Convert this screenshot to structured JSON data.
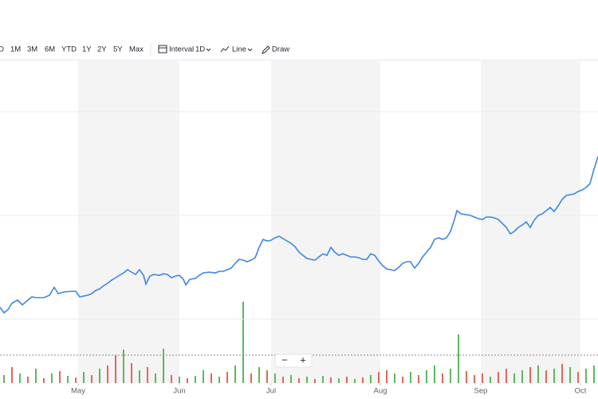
{
  "toolbar": {
    "ranges": [
      "D",
      "1M",
      "3M",
      "6M",
      "YTD",
      "1Y",
      "2Y",
      "5Y",
      "Max"
    ],
    "interval": "Interval",
    "interval_value": "1D",
    "chart_type": "Line",
    "draw": "Draw"
  },
  "zoom": [
    "−",
    "+"
  ],
  "chart_data": [
    {
      "type": "line",
      "color": "#3d86e6",
      "xlim": [
        0,
        750
      ],
      "ylim": [
        0,
        400
      ],
      "yticks": [
        80,
        210,
        340
      ],
      "grid": true,
      "xticks": [
        {
          "value": 98,
          "label": "May"
        },
        {
          "value": 225,
          "label": "Jun"
        },
        {
          "value": 340,
          "label": "Jul"
        },
        {
          "value": 477,
          "label": "Aug"
        },
        {
          "value": 603,
          "label": "Sep"
        },
        {
          "value": 728,
          "label": "Oct"
        }
      ],
      "x": [
        0,
        5,
        10,
        15,
        22,
        28,
        35,
        40,
        45,
        55,
        62,
        68,
        73,
        80,
        90,
        95,
        100,
        105,
        110,
        115,
        120,
        125,
        130,
        135,
        140,
        145,
        150,
        155,
        160,
        165,
        170,
        175,
        180,
        183,
        188,
        193,
        200,
        205,
        210,
        215,
        220,
        225,
        230,
        233,
        238,
        245,
        250,
        255,
        262,
        270,
        275,
        280,
        285,
        290,
        295,
        300,
        305,
        310,
        315,
        320,
        325,
        330,
        335,
        340,
        345,
        350,
        355,
        360,
        365,
        370,
        375,
        380,
        385,
        390,
        395,
        400,
        405,
        410,
        415,
        420,
        425,
        430,
        435,
        440,
        445,
        450,
        455,
        460,
        465,
        470,
        475,
        480,
        485,
        490,
        495,
        500,
        505,
        510,
        515,
        520,
        525,
        530,
        535,
        540,
        545,
        550,
        555,
        560,
        565,
        570,
        573,
        578,
        585,
        590,
        595,
        600,
        605,
        610,
        615,
        620,
        625,
        630,
        635,
        640,
        645,
        650,
        655,
        660,
        665,
        670,
        675,
        680,
        685,
        690,
        695,
        700,
        705,
        710,
        715,
        720,
        725,
        730,
        735,
        740,
        745,
        750
      ],
      "values": [
        95,
        88,
        92,
        100,
        104,
        98,
        104,
        108,
        107,
        107,
        110,
        120,
        112,
        114,
        115,
        115,
        108,
        109,
        110,
        112,
        116,
        118,
        122,
        125,
        129,
        132,
        135,
        138,
        142,
        139,
        136,
        142,
        135,
        124,
        134,
        136,
        135,
        137,
        136,
        132,
        134,
        135,
        130,
        123,
        130,
        131,
        135,
        138,
        139,
        138,
        140,
        140,
        142,
        144,
        150,
        155,
        154,
        152,
        154,
        157,
        170,
        180,
        178,
        179,
        182,
        184,
        181,
        178,
        175,
        171,
        164,
        160,
        156,
        155,
        154,
        158,
        162,
        160,
        170,
        164,
        160,
        162,
        160,
        158,
        158,
        157,
        155,
        155,
        162,
        160,
        153,
        147,
        143,
        142,
        141,
        145,
        150,
        152,
        152,
        144,
        150,
        158,
        164,
        170,
        180,
        182,
        180,
        182,
        190,
        205,
        216,
        212,
        211,
        210,
        208,
        206,
        205,
        208,
        208,
        207,
        205,
        200,
        195,
        187,
        190,
        195,
        198,
        202,
        195,
        204,
        210,
        212,
        216,
        220,
        215,
        222,
        230,
        235,
        236,
        237,
        240,
        242,
        245,
        250,
        268,
        284
      ]
    },
    {
      "type": "bar",
      "xlim": [
        0,
        750
      ],
      "ylim": [
        0,
        400
      ],
      "x": [
        5,
        15,
        25,
        35,
        45,
        55,
        65,
        75,
        85,
        95,
        105,
        115,
        125,
        135,
        145,
        155,
        165,
        175,
        185,
        195,
        205,
        215,
        225,
        235,
        245,
        255,
        265,
        275,
        285,
        295,
        305,
        315,
        325,
        335,
        345,
        355,
        365,
        375,
        385,
        395,
        405,
        415,
        425,
        435,
        445,
        455,
        465,
        475,
        485,
        495,
        505,
        515,
        525,
        535,
        545,
        555,
        565,
        575,
        585,
        595,
        605,
        615,
        625,
        635,
        645,
        655,
        665,
        675,
        685,
        695,
        705,
        715,
        725,
        735,
        745
      ],
      "values": [
        10,
        20,
        12,
        8,
        18,
        6,
        12,
        15,
        9,
        7,
        14,
        10,
        18,
        22,
        35,
        42,
        25,
        16,
        20,
        12,
        43,
        10,
        8,
        6,
        9,
        16,
        12,
        8,
        14,
        22,
        102,
        12,
        20,
        16,
        12,
        8,
        10,
        6,
        8,
        5,
        9,
        7,
        6,
        8,
        5,
        7,
        10,
        14,
        16,
        12,
        8,
        14,
        10,
        16,
        22,
        12,
        18,
        61,
        15,
        10,
        12,
        8,
        14,
        18,
        12,
        16,
        20,
        22,
        16,
        18,
        24,
        20,
        14,
        18,
        22
      ],
      "colors": [
        "#5cb85c",
        "#e8635a",
        "#5cb85c",
        "#e8635a",
        "#5cb85c",
        "#e8635a",
        "#5cb85c",
        "#e8635a",
        "#5cb85c",
        "#e8635a",
        "#5cb85c",
        "#e8635a",
        "#5cb85c",
        "#e8635a",
        "#e8635a",
        "#5cb85c",
        "#e8635a",
        "#5cb85c",
        "#e8635a",
        "#5cb85c",
        "#5cb85c",
        "#e8635a",
        "#5cb85c",
        "#e8635a",
        "#5cb85c",
        "#5cb85c",
        "#e8635a",
        "#5cb85c",
        "#e8635a",
        "#5cb85c",
        "#5cb85c",
        "#e8635a",
        "#5cb85c",
        "#e8635a",
        "#5cb85c",
        "#e8635a",
        "#5cb85c",
        "#e8635a",
        "#5cb85c",
        "#e8635a",
        "#5cb85c",
        "#e8635a",
        "#5cb85c",
        "#e8635a",
        "#5cb85c",
        "#e8635a",
        "#5cb85c",
        "#e8635a",
        "#e8635a",
        "#5cb85c",
        "#e8635a",
        "#5cb85c",
        "#e8635a",
        "#5cb85c",
        "#5cb85c",
        "#e8635a",
        "#5cb85c",
        "#5cb85c",
        "#e8635a",
        "#e8635a",
        "#e8635a",
        "#5cb85c",
        "#e8635a",
        "#e8635a",
        "#5cb85c",
        "#5cb85c",
        "#e8635a",
        "#5cb85c",
        "#e8635a",
        "#5cb85c",
        "#e8635a",
        "#5cb85c",
        "#e8635a",
        "#5cb85c",
        "#5cb85c"
      ]
    }
  ]
}
